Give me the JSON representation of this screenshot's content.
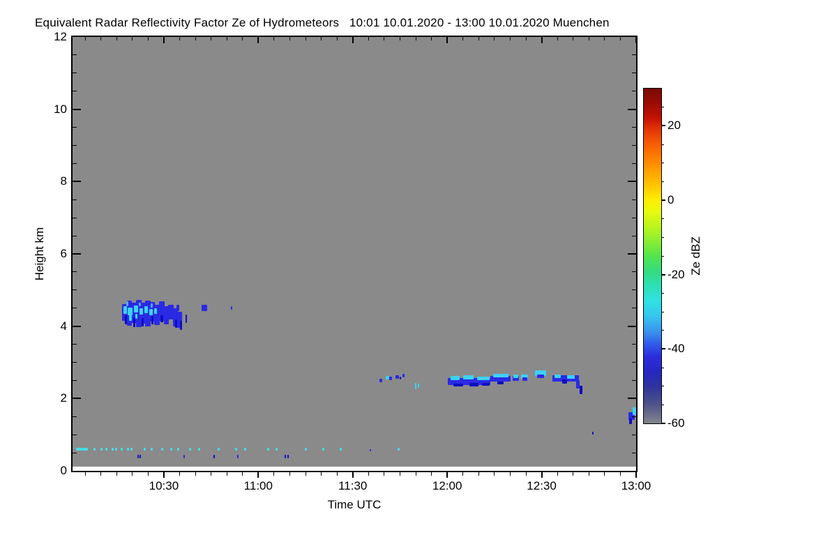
{
  "title": "Equivalent Radar Reflectivity Factor Ze of Hydrometeors   10:01 10.01.2020 - 13:00 10.01.2020 Muenchen",
  "chart_data": {
    "type": "heatmap",
    "title": "Equivalent Radar Reflectivity Factor Ze of Hydrometeors",
    "time_range_label": "10:01 10.01.2020 - 13:00 10.01.2020",
    "station": "Muenchen",
    "xlabel": "Time UTC",
    "ylabel": "Height km",
    "x_start_min": 1,
    "x_end_min": 180,
    "x_ticks": [
      {
        "t": 30,
        "label": "10:30"
      },
      {
        "t": 60,
        "label": "11:00"
      },
      {
        "t": 90,
        "label": "11:30"
      },
      {
        "t": 120,
        "label": "12:00"
      },
      {
        "t": 150,
        "label": "12:30"
      },
      {
        "t": 180,
        "label": "13:00"
      }
    ],
    "x_minor_step_min": 5,
    "ylim": [
      0,
      12
    ],
    "y_ticks": [
      0,
      2,
      4,
      6,
      8,
      10,
      12
    ],
    "y_minor_step_km": 0.5,
    "background_color": "#8a8a8a",
    "colorbar": {
      "label": "Ze dBZ",
      "vmin": -60,
      "vmax": 30,
      "tick_values": [
        20,
        0,
        -20,
        -40,
        -60
      ],
      "minor_step": 5,
      "gradient_stops": [
        [
          30,
          "#7a0b06"
        ],
        [
          26,
          "#9c0b04"
        ],
        [
          22,
          "#c41203"
        ],
        [
          19,
          "#e33505"
        ],
        [
          15,
          "#f75e03"
        ],
        [
          11,
          "#ff8300"
        ],
        [
          7,
          "#ffa800"
        ],
        [
          3,
          "#ffd000"
        ],
        [
          0,
          "#fdee00"
        ],
        [
          -3,
          "#e8fa0e"
        ],
        [
          -7,
          "#bdf51c"
        ],
        [
          -11,
          "#8aee32"
        ],
        [
          -15,
          "#55e44c"
        ],
        [
          -19,
          "#35dc7e"
        ],
        [
          -23,
          "#2ce0b4"
        ],
        [
          -27,
          "#2fe2e2"
        ],
        [
          -31,
          "#35c7ee"
        ],
        [
          -35,
          "#3a98ee"
        ],
        [
          -39,
          "#3056e8"
        ],
        [
          -42,
          "#2b2fdc"
        ],
        [
          -46,
          "#2627c2"
        ],
        [
          -50,
          "#2e339e"
        ],
        [
          -55,
          "#4e5389"
        ],
        [
          -60,
          "#84868c"
        ]
      ]
    },
    "palette": {
      "b": "#2a2ae4",
      "d": "#0e0ec0",
      "c": "#3cd2f5",
      "l": "#58a8f8",
      "s": "#49dbe8"
    },
    "features": [
      {
        "group": "cloud_layer_4km_1017_1036",
        "rects": [
          [
            16.8,
            18.5,
            4.15,
            4.62,
            "b"
          ],
          [
            18.2,
            19.9,
            4.02,
            4.7,
            "b"
          ],
          [
            19.7,
            21.4,
            4.1,
            4.66,
            "b"
          ],
          [
            21.2,
            22.9,
            3.98,
            4.72,
            "b"
          ],
          [
            22.7,
            24.3,
            4.08,
            4.65,
            "b"
          ],
          [
            24.1,
            25.8,
            4.0,
            4.7,
            "b"
          ],
          [
            25.6,
            27.2,
            4.12,
            4.67,
            "b"
          ],
          [
            27.0,
            28.7,
            4.03,
            4.6,
            "b"
          ],
          [
            28.5,
            30.2,
            4.15,
            4.68,
            "b"
          ],
          [
            30.0,
            31.6,
            4.05,
            4.55,
            "b"
          ],
          [
            31.4,
            33.1,
            4.18,
            4.6,
            "b"
          ],
          [
            32.9,
            34.5,
            4.0,
            4.5,
            "b"
          ],
          [
            34.3,
            35.9,
            3.95,
            4.4,
            "b"
          ],
          [
            17.5,
            18.2,
            4.05,
            4.3,
            "d"
          ],
          [
            20.2,
            20.9,
            3.98,
            4.25,
            "d"
          ],
          [
            23.0,
            23.7,
            4.0,
            4.22,
            "d"
          ],
          [
            26.0,
            26.8,
            4.05,
            4.28,
            "d"
          ],
          [
            29.0,
            29.7,
            4.1,
            4.3,
            "d"
          ],
          [
            33.5,
            34.2,
            3.95,
            4.18,
            "d"
          ],
          [
            35.1,
            35.8,
            3.9,
            4.15,
            "d"
          ],
          [
            17.2,
            18.3,
            4.35,
            4.55,
            "c"
          ],
          [
            18.6,
            20.0,
            4.3,
            4.52,
            "c"
          ],
          [
            20.4,
            21.8,
            4.38,
            4.58,
            "c"
          ],
          [
            22.2,
            23.4,
            4.32,
            4.5,
            "c"
          ],
          [
            23.8,
            25.0,
            4.36,
            4.55,
            "c"
          ],
          [
            25.4,
            26.6,
            4.3,
            4.48,
            "c"
          ],
          [
            27.0,
            27.9,
            4.35,
            4.5,
            "c"
          ],
          [
            19.0,
            19.8,
            4.15,
            4.32,
            "c"
          ],
          [
            21.0,
            21.6,
            4.2,
            4.35,
            "c"
          ],
          [
            18.0,
            18.7,
            4.55,
            4.68,
            "l"
          ],
          [
            22.0,
            22.7,
            4.55,
            4.66,
            "l"
          ],
          [
            25.8,
            26.5,
            4.52,
            4.64,
            "l"
          ]
        ]
      },
      {
        "group": "isolated_specks_4km",
        "rects": [
          [
            34.0,
            34.8,
            4.42,
            4.6,
            "b"
          ],
          [
            36.8,
            37.4,
            4.08,
            4.32,
            "d"
          ],
          [
            42.0,
            43.8,
            4.42,
            4.6,
            "b"
          ],
          [
            51.2,
            51.8,
            4.45,
            4.55,
            "b"
          ]
        ]
      },
      {
        "group": "cloud_layer_2p5km_1140_1243",
        "rects": [
          [
            98.5,
            99.3,
            2.44,
            2.54,
            "b"
          ],
          [
            100.5,
            101.5,
            2.52,
            2.62,
            "c"
          ],
          [
            101.6,
            102.5,
            2.5,
            2.6,
            "b"
          ],
          [
            103.6,
            104.6,
            2.54,
            2.64,
            "b"
          ],
          [
            104.8,
            105.4,
            2.52,
            2.6,
            "d"
          ],
          [
            105.8,
            106.4,
            2.58,
            2.68,
            "b"
          ],
          [
            109.8,
            110.3,
            2.26,
            2.44,
            "c"
          ],
          [
            110.7,
            111.1,
            2.3,
            2.42,
            "c"
          ],
          [
            120.2,
            133.7,
            2.38,
            2.56,
            "b"
          ],
          [
            121.0,
            124.0,
            2.5,
            2.62,
            "c"
          ],
          [
            125.0,
            128.5,
            2.52,
            2.64,
            "c"
          ],
          [
            129.5,
            133.5,
            2.5,
            2.6,
            "c"
          ],
          [
            122.0,
            125.0,
            2.33,
            2.42,
            "d"
          ],
          [
            127.0,
            130.0,
            2.34,
            2.43,
            "d"
          ],
          [
            131.0,
            133.5,
            2.36,
            2.44,
            "d"
          ],
          [
            133.7,
            140.1,
            2.46,
            2.62,
            "b"
          ],
          [
            134.5,
            139.5,
            2.58,
            2.68,
            "c"
          ],
          [
            136.0,
            138.0,
            2.4,
            2.48,
            "d"
          ],
          [
            140.8,
            142.8,
            2.48,
            2.62,
            "b"
          ],
          [
            141.0,
            142.5,
            2.56,
            2.66,
            "c"
          ],
          [
            143.5,
            145.7,
            2.54,
            2.67,
            "c"
          ],
          [
            143.8,
            145.4,
            2.48,
            2.58,
            "b"
          ],
          [
            147.9,
            151.4,
            2.62,
            2.77,
            "c"
          ],
          [
            148.5,
            150.8,
            2.56,
            2.66,
            "b"
          ],
          [
            153.4,
            161.8,
            2.46,
            2.64,
            "b"
          ],
          [
            154.0,
            156.0,
            2.56,
            2.66,
            "c"
          ],
          [
            158.0,
            160.5,
            2.54,
            2.64,
            "c"
          ],
          [
            156.5,
            158.0,
            2.42,
            2.52,
            "d"
          ],
          [
            161.0,
            162.0,
            2.28,
            2.5,
            "b"
          ],
          [
            162.0,
            162.9,
            2.12,
            2.36,
            "d"
          ]
        ]
      },
      {
        "group": "right_edge_feature_1p5km",
        "rects": [
          [
            177.5,
            179.6,
            1.4,
            1.62,
            "b"
          ],
          [
            178.8,
            179.9,
            1.55,
            1.76,
            "c"
          ],
          [
            177.8,
            178.6,
            1.3,
            1.45,
            "d"
          ],
          [
            166.0,
            166.5,
            1.0,
            1.08,
            "d"
          ]
        ]
      },
      {
        "group": "near_surface_specks",
        "rects": [
          [
            2.0,
            4.0,
            0.56,
            0.64,
            "s"
          ],
          [
            4.1,
            5.9,
            0.56,
            0.64,
            "s"
          ],
          [
            7.6,
            8.3,
            0.56,
            0.63,
            "s"
          ],
          [
            9.9,
            10.6,
            0.56,
            0.63,
            "s"
          ],
          [
            11.4,
            12.1,
            0.56,
            0.63,
            "s"
          ],
          [
            13.4,
            14.1,
            0.56,
            0.63,
            "s"
          ],
          [
            14.5,
            15.2,
            0.56,
            0.63,
            "s"
          ],
          [
            16.3,
            17.0,
            0.56,
            0.63,
            "s"
          ],
          [
            18.3,
            19.0,
            0.56,
            0.63,
            "s"
          ],
          [
            19.4,
            20.1,
            0.56,
            0.63,
            "s"
          ],
          [
            23.6,
            24.3,
            0.56,
            0.63,
            "s"
          ],
          [
            25.8,
            26.5,
            0.56,
            0.63,
            "s"
          ],
          [
            29.1,
            29.8,
            0.56,
            0.63,
            "s"
          ],
          [
            32.0,
            32.7,
            0.56,
            0.63,
            "s"
          ],
          [
            34.2,
            34.9,
            0.56,
            0.63,
            "s"
          ],
          [
            38.0,
            38.7,
            0.56,
            0.63,
            "s"
          ],
          [
            40.9,
            41.6,
            0.56,
            0.63,
            "s"
          ],
          [
            47.1,
            47.8,
            0.56,
            0.63,
            "s"
          ],
          [
            52.6,
            53.3,
            0.56,
            0.63,
            "s"
          ],
          [
            55.5,
            56.2,
            0.56,
            0.63,
            "s"
          ],
          [
            62.8,
            63.5,
            0.56,
            0.63,
            "s"
          ],
          [
            65.5,
            66.2,
            0.56,
            0.63,
            "s"
          ],
          [
            74.8,
            75.5,
            0.56,
            0.63,
            "s"
          ],
          [
            80.3,
            81.0,
            0.56,
            0.63,
            "s"
          ],
          [
            85.8,
            86.5,
            0.56,
            0.63,
            "s"
          ],
          [
            104.2,
            105.0,
            0.56,
            0.63,
            "s"
          ],
          [
            95.4,
            95.8,
            0.54,
            0.6,
            "b"
          ],
          [
            21.6,
            22.1,
            0.34,
            0.44,
            "d"
          ],
          [
            22.3,
            22.8,
            0.34,
            0.44,
            "d"
          ],
          [
            36.2,
            36.7,
            0.34,
            0.44,
            "b"
          ],
          [
            45.7,
            46.2,
            0.34,
            0.44,
            "d"
          ],
          [
            53.3,
            53.8,
            0.34,
            0.44,
            "b"
          ],
          [
            68.3,
            68.8,
            0.34,
            0.44,
            "d"
          ],
          [
            69.2,
            69.7,
            0.34,
            0.44,
            "d"
          ]
        ]
      }
    ]
  }
}
